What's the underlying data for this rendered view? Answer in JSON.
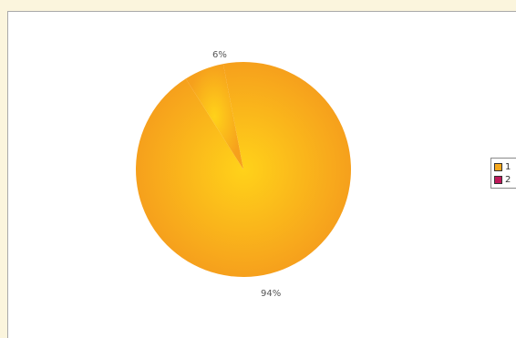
{
  "chart_data": {
    "type": "pie",
    "slices": [
      {
        "name": "1",
        "value": 94,
        "label": "94%",
        "color": "#f6a81c"
      },
      {
        "name": "2",
        "value": 6,
        "label": "6%",
        "color": "#c0185a"
      }
    ],
    "legend": {
      "placement": "right",
      "entries": [
        "1",
        "2"
      ]
    }
  }
}
